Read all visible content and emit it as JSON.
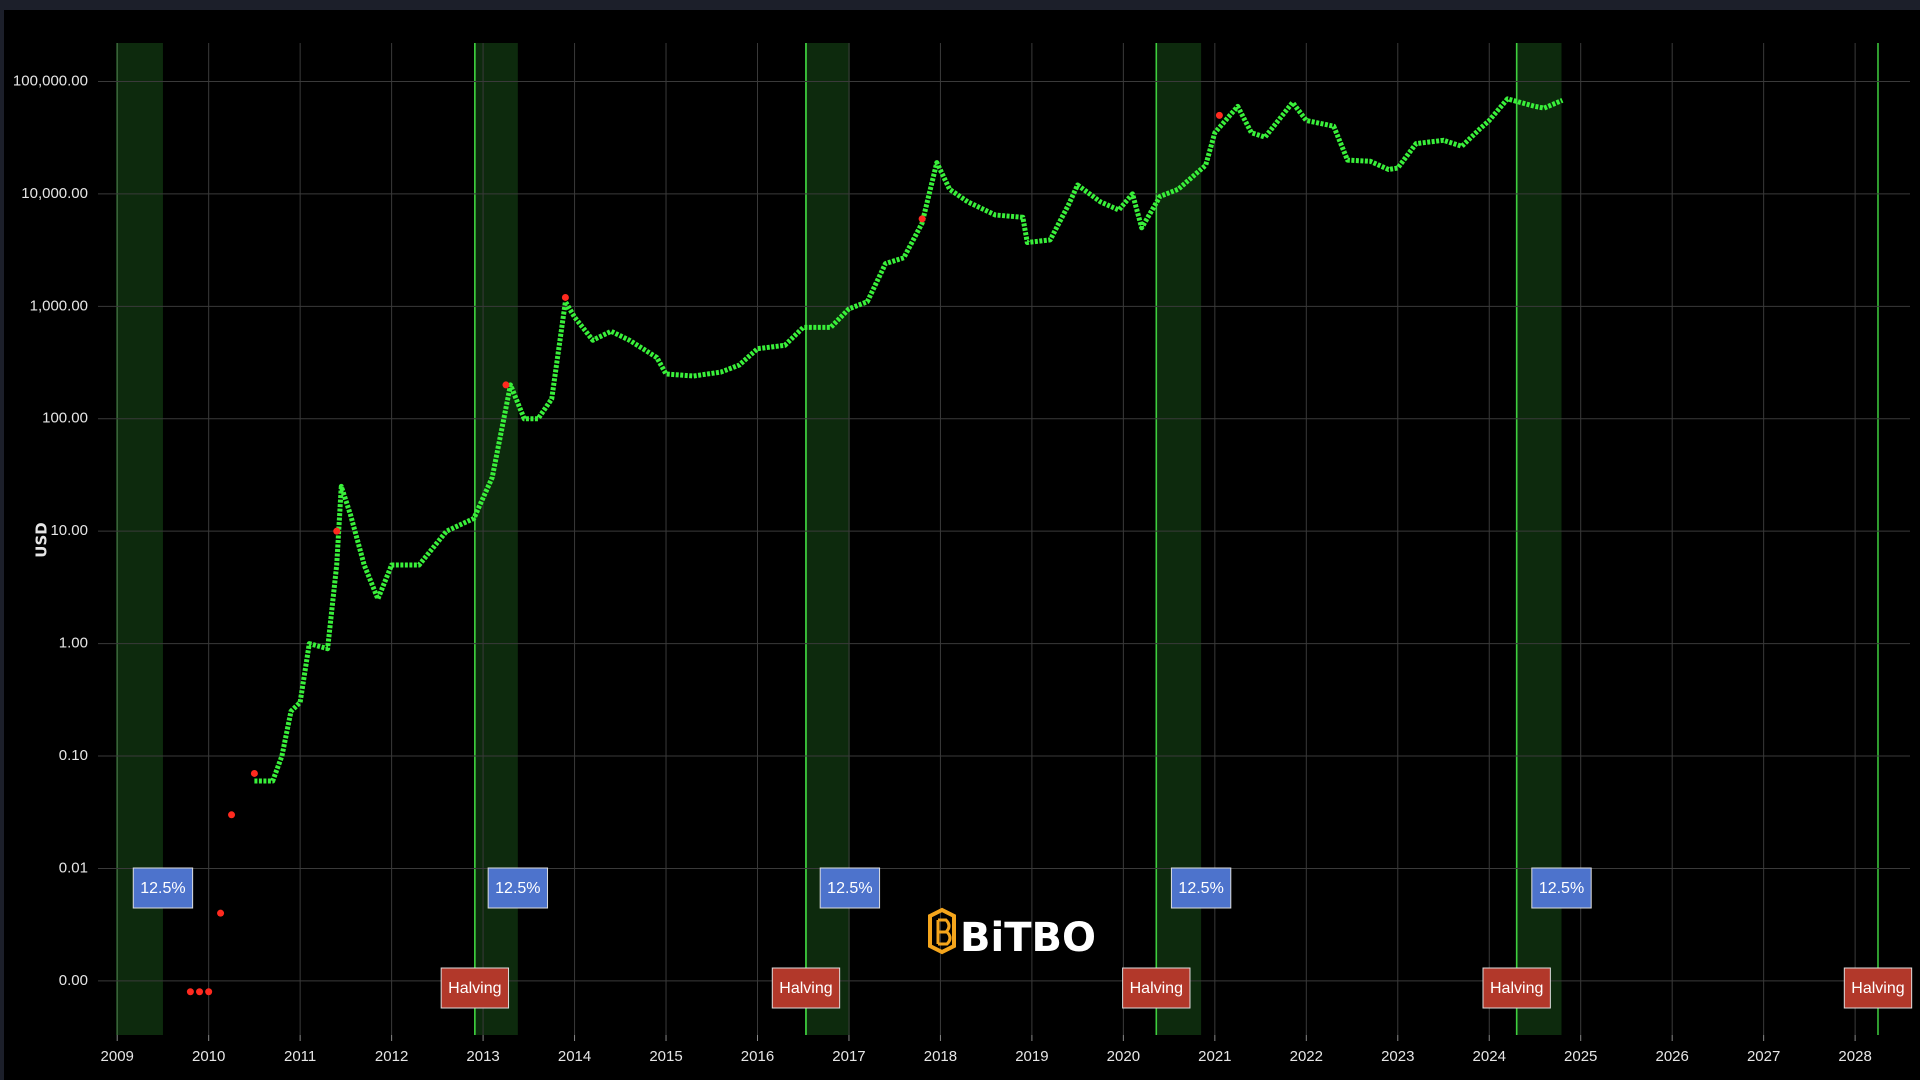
{
  "chart_data": {
    "type": "line",
    "y_label": "USD",
    "watermark": "BiTBO",
    "log_y": true,
    "grid": true,
    "xlim": [
      2008.79,
      2028.6
    ],
    "xticks": [
      2009,
      2010,
      2011,
      2012,
      2013,
      2014,
      2015,
      2016,
      2017,
      2018,
      2019,
      2020,
      2021,
      2022,
      2023,
      2024,
      2025,
      2026,
      2027,
      2028
    ],
    "ylim": [
      0.00033,
      220000
    ],
    "yticks": [
      {
        "value": 0.001,
        "label": "0.00"
      },
      {
        "value": 0.01,
        "label": "0.01"
      },
      {
        "value": 0.1,
        "label": "0.10"
      },
      {
        "value": 1,
        "label": "1.00"
      },
      {
        "value": 10,
        "label": "10.00"
      },
      {
        "value": 100,
        "label": "100.00"
      },
      {
        "value": 1000,
        "label": "1,000.00"
      },
      {
        "value": 10000,
        "label": "10,000.00"
      },
      {
        "value": 100000,
        "label": "100,000.00"
      }
    ],
    "bands": [
      {
        "start": 2009.0,
        "end": 2009.5,
        "label": "12.5%"
      },
      {
        "start": 2012.91,
        "end": 2013.38,
        "label": "12.5%"
      },
      {
        "start": 2016.53,
        "end": 2017.01,
        "label": "12.5%"
      },
      {
        "start": 2020.36,
        "end": 2020.85,
        "label": "12.5%"
      },
      {
        "start": 2024.3,
        "end": 2024.79,
        "label": "12.5%"
      }
    ],
    "halvings": [
      {
        "x": 2012.91,
        "label": "Halving"
      },
      {
        "x": 2016.53,
        "label": "Halving"
      },
      {
        "x": 2020.36,
        "label": "Halving"
      },
      {
        "x": 2024.3,
        "label": "Halving"
      },
      {
        "x": 2028.25,
        "label": "Halving"
      }
    ],
    "band_color": "#0d2a0d",
    "halving_color": "#3ecf3e",
    "series": [
      {
        "color": "#39f03a",
        "mode": "lines",
        "x": [
          2010.5,
          2010.7,
          2010.8,
          2010.9,
          2011.0,
          2011.1,
          2011.3,
          2011.4,
          2011.45,
          2011.55,
          2011.7,
          2011.85,
          2012.0,
          2012.3,
          2012.6,
          2012.9,
          2013.1,
          2013.3,
          2013.45,
          2013.6,
          2013.75,
          2013.9,
          2014.0,
          2014.2,
          2014.4,
          2014.6,
          2014.9,
          2015.0,
          2015.3,
          2015.6,
          2015.8,
          2016.0,
          2016.3,
          2016.5,
          2016.8,
          2017.0,
          2017.2,
          2017.4,
          2017.6,
          2017.8,
          2017.96,
          2018.1,
          2018.3,
          2018.6,
          2018.9,
          2018.95,
          2019.2,
          2019.4,
          2019.5,
          2019.75,
          2019.95,
          2020.1,
          2020.2,
          2020.4,
          2020.6,
          2020.9,
          2021.0,
          2021.25,
          2021.4,
          2021.55,
          2021.85,
          2022.0,
          2022.3,
          2022.45,
          2022.7,
          2022.9,
          2023.0,
          2023.2,
          2023.5,
          2023.7,
          2023.9,
          2024.0,
          2024.2,
          2024.5,
          2024.6,
          2024.8
        ],
        "values": [
          0.06,
          0.06,
          0.1,
          0.25,
          0.3,
          1.0,
          0.9,
          5,
          25,
          14,
          5,
          2.5,
          5,
          5,
          10,
          13,
          30,
          200,
          100,
          100,
          150,
          1100,
          800,
          500,
          600,
          500,
          350,
          250,
          240,
          260,
          300,
          420,
          450,
          650,
          650,
          950,
          1100,
          2400,
          2700,
          5500,
          19000,
          11000,
          8500,
          6500,
          6200,
          3700,
          3900,
          8000,
          12000,
          8500,
          7200,
          10000,
          5000,
          9500,
          11000,
          18000,
          35000,
          60000,
          35000,
          32000,
          65000,
          45000,
          40000,
          20000,
          19500,
          16500,
          17000,
          28000,
          30000,
          26500,
          38000,
          45000,
          70000,
          60000,
          58000,
          68000
        ]
      },
      {
        "color": "#ff2a1f",
        "mode": "markers",
        "x": [
          2009.8,
          2009.9,
          2010.0,
          2010.13,
          2010.25,
          2010.5,
          2011.4,
          2013.25,
          2013.9,
          2017.8,
          2021.05
        ],
        "values": [
          0.0008,
          0.0008,
          0.0008,
          0.004,
          0.03,
          0.07,
          10,
          200,
          1200,
          6000,
          50000
        ]
      }
    ]
  }
}
